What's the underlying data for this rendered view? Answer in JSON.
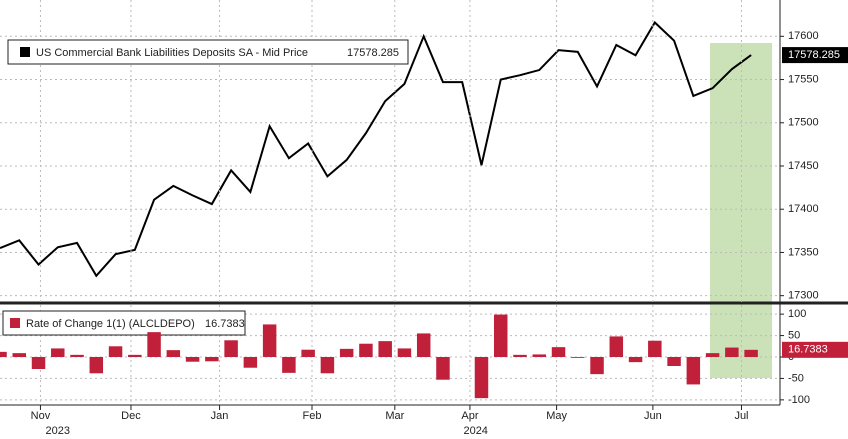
{
  "chart_data": [
    {
      "type": "line",
      "series": [
        {
          "name": "US Commercial Bank Liabilities Deposits SA - Mid Price",
          "color": "#000000",
          "values": [
            17355,
            17364,
            17336,
            17356,
            17361,
            17323,
            17348,
            17353,
            17411,
            17427,
            17416,
            17406,
            17445,
            17420,
            17496,
            17459,
            17476,
            17438,
            17457,
            17488,
            17525,
            17545,
            17600,
            17547,
            17547,
            17451,
            17550,
            17555,
            17561,
            17584,
            17582,
            17542,
            17590,
            17578,
            17616,
            17595,
            17531,
            17540,
            17562,
            17578.285
          ]
        }
      ],
      "xlim": [
        0,
        40.5
      ],
      "ylim": [
        17295,
        17642
      ],
      "yticks": [
        17300,
        17350,
        17400,
        17450,
        17500,
        17550,
        17600
      ],
      "grid": true
    },
    {
      "type": "bar",
      "series": [
        {
          "name": "Rate of Change 1(1) (ALCLDEPO)",
          "color": "#c0203a",
          "values": [
            12,
            9,
            -28,
            20,
            5,
            -38,
            25,
            5,
            58,
            16,
            -11,
            -10,
            39,
            -25,
            76,
            -37,
            17,
            -38,
            19,
            31,
            37,
            20,
            55,
            -53,
            0,
            -96,
            99,
            5,
            6,
            23,
            -2,
            -40,
            48,
            -12,
            38,
            -21,
            -64,
            9,
            22,
            16.7383
          ]
        }
      ],
      "xlim": [
        0,
        40.5
      ],
      "ylim": [
        -112,
        119
      ],
      "yticks": [
        100,
        50,
        0,
        -50,
        -100
      ],
      "xticks": [
        {
          "value": 2.1,
          "label": "Nov"
        },
        {
          "value": 6.8,
          "label": "Dec"
        },
        {
          "value": 11.4,
          "label": "Jan"
        },
        {
          "value": 16.2,
          "label": "Feb"
        },
        {
          "value": 20.5,
          "label": "Mar"
        },
        {
          "value": 24.4,
          "label": "Apr"
        },
        {
          "value": 28.9,
          "label": "May"
        },
        {
          "value": 33.9,
          "label": "Jun"
        },
        {
          "value": 38.5,
          "label": "Jul"
        }
      ],
      "year_ticks": [
        {
          "value": 3.0,
          "label": "2023"
        },
        {
          "value": 24.7,
          "label": "2024"
        }
      ],
      "grid": true
    }
  ]
}
